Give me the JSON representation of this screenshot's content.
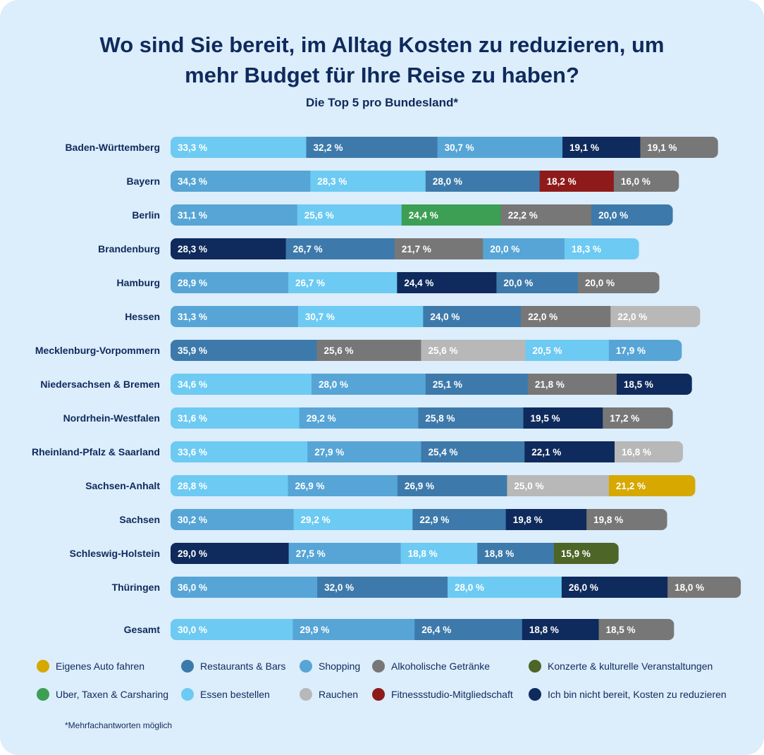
{
  "title_line1": "Wo sind Sie bereit, im Alltag Kosten zu reduzieren, um",
  "title_line2": "mehr Budget für Ihre Reise zu haben?",
  "subtitle": "Die Top 5 pro Bundesland*",
  "footnote": "*Mehrfachantworten möglich",
  "colors": {
    "auto": "#d6a800",
    "restaurants": "#3d7aab",
    "shopping": "#56a5d6",
    "alkohol": "#777777",
    "konzerte": "#4e6528",
    "uber": "#3d9f54",
    "essen": "#6dcaf2",
    "rauchen": "#b8b8b8",
    "fitness": "#8f1a1a",
    "nicht": "#0f2a5c"
  },
  "legend": [
    {
      "key": "auto",
      "label": "Eigenes Auto fahren"
    },
    {
      "key": "restaurants",
      "label": "Restaurants & Bars"
    },
    {
      "key": "shopping",
      "label": "Shopping"
    },
    {
      "key": "alkohol",
      "label": "Alkoholische Getränke"
    },
    {
      "key": "konzerte",
      "label": "Konzerte & kulturelle Veranstaltungen"
    },
    {
      "key": "uber",
      "label": "Uber, Taxen & Carsharing"
    },
    {
      "key": "essen",
      "label": "Essen bestellen"
    },
    {
      "key": "rauchen",
      "label": "Rauchen"
    },
    {
      "key": "fitness",
      "label": "Fitnessstudio-Mitgliedschaft"
    },
    {
      "key": "nicht",
      "label": "Ich bin nicht bereit, Kosten zu reduzieren"
    }
  ],
  "chart_data": {
    "type": "bar",
    "orientation": "horizontal-stacked",
    "title": "Wo sind Sie bereit, im Alltag Kosten zu reduzieren, um mehr Budget für Ihre Reise zu haben?",
    "subtitle": "Die Top 5 pro Bundesland*",
    "unit": "%",
    "rows": [
      {
        "label": "Baden-Württemberg",
        "segments": [
          {
            "cat": "essen",
            "value": 33.3,
            "text": "33,3 %"
          },
          {
            "cat": "restaurants",
            "value": 32.2,
            "text": "32,2 %"
          },
          {
            "cat": "shopping",
            "value": 30.7,
            "text": "30,7 %"
          },
          {
            "cat": "nicht",
            "value": 19.1,
            "text": "19,1 %"
          },
          {
            "cat": "alkohol",
            "value": 19.1,
            "text": "19,1 %"
          }
        ]
      },
      {
        "label": "Bayern",
        "segments": [
          {
            "cat": "shopping",
            "value": 34.3,
            "text": "34,3 %"
          },
          {
            "cat": "essen",
            "value": 28.3,
            "text": "28,3 %"
          },
          {
            "cat": "restaurants",
            "value": 28.0,
            "text": "28,0 %"
          },
          {
            "cat": "fitness",
            "value": 18.2,
            "text": "18,2 %"
          },
          {
            "cat": "alkohol",
            "value": 16.0,
            "text": "16,0 %"
          }
        ]
      },
      {
        "label": "Berlin",
        "segments": [
          {
            "cat": "shopping",
            "value": 31.1,
            "text": "31,1 %"
          },
          {
            "cat": "essen",
            "value": 25.6,
            "text": "25,6 %"
          },
          {
            "cat": "uber",
            "value": 24.4,
            "text": "24,4 %"
          },
          {
            "cat": "alkohol",
            "value": 22.2,
            "text": "22,2 %"
          },
          {
            "cat": "restaurants",
            "value": 20.0,
            "text": "20,0 %"
          }
        ]
      },
      {
        "label": "Brandenburg",
        "segments": [
          {
            "cat": "nicht",
            "value": 28.3,
            "text": "28,3 %"
          },
          {
            "cat": "restaurants",
            "value": 26.7,
            "text": "26,7 %"
          },
          {
            "cat": "alkohol",
            "value": 21.7,
            "text": "21,7 %"
          },
          {
            "cat": "shopping",
            "value": 20.0,
            "text": "20,0 %"
          },
          {
            "cat": "essen",
            "value": 18.3,
            "text": "18,3 %"
          }
        ]
      },
      {
        "label": "Hamburg",
        "segments": [
          {
            "cat": "shopping",
            "value": 28.9,
            "text": "28,9 %"
          },
          {
            "cat": "essen",
            "value": 26.7,
            "text": "26,7 %"
          },
          {
            "cat": "nicht",
            "value": 24.4,
            "text": "24,4 %"
          },
          {
            "cat": "restaurants",
            "value": 20.0,
            "text": "20,0 %"
          },
          {
            "cat": "alkohol",
            "value": 20.0,
            "text": "20,0 %"
          }
        ]
      },
      {
        "label": "Hessen",
        "segments": [
          {
            "cat": "shopping",
            "value": 31.3,
            "text": "31,3 %"
          },
          {
            "cat": "essen",
            "value": 30.7,
            "text": "30,7 %"
          },
          {
            "cat": "restaurants",
            "value": 24.0,
            "text": "24,0 %"
          },
          {
            "cat": "alkohol",
            "value": 22.0,
            "text": "22,0 %"
          },
          {
            "cat": "rauchen",
            "value": 22.0,
            "text": "22,0 %"
          }
        ]
      },
      {
        "label": "Mecklenburg-Vorpommern",
        "segments": [
          {
            "cat": "restaurants",
            "value": 35.9,
            "text": "35,9 %"
          },
          {
            "cat": "alkohol",
            "value": 25.6,
            "text": "25,6 %"
          },
          {
            "cat": "rauchen",
            "value": 25.6,
            "text": "25,6 %"
          },
          {
            "cat": "essen",
            "value": 20.5,
            "text": "20,5 %"
          },
          {
            "cat": "shopping",
            "value": 17.9,
            "text": "17,9 %"
          }
        ]
      },
      {
        "label": "Niedersachsen & Bremen",
        "segments": [
          {
            "cat": "essen",
            "value": 34.6,
            "text": "34,6 %"
          },
          {
            "cat": "shopping",
            "value": 28.0,
            "text": "28,0 %"
          },
          {
            "cat": "restaurants",
            "value": 25.1,
            "text": "25,1 %"
          },
          {
            "cat": "alkohol",
            "value": 21.8,
            "text": "21,8 %"
          },
          {
            "cat": "nicht",
            "value": 18.5,
            "text": "18,5 %"
          }
        ]
      },
      {
        "label": "Nordrhein-Westfalen",
        "segments": [
          {
            "cat": "essen",
            "value": 31.6,
            "text": "31,6 %"
          },
          {
            "cat": "shopping",
            "value": 29.2,
            "text": "29,2 %"
          },
          {
            "cat": "restaurants",
            "value": 25.8,
            "text": "25,8 %"
          },
          {
            "cat": "nicht",
            "value": 19.5,
            "text": "19,5 %"
          },
          {
            "cat": "alkohol",
            "value": 17.2,
            "text": "17,2 %"
          }
        ]
      },
      {
        "label": "Rheinland-Pfalz & Saarland",
        "segments": [
          {
            "cat": "essen",
            "value": 33.6,
            "text": "33,6 %"
          },
          {
            "cat": "shopping",
            "value": 27.9,
            "text": "27,9 %"
          },
          {
            "cat": "restaurants",
            "value": 25.4,
            "text": "25,4 %"
          },
          {
            "cat": "nicht",
            "value": 22.1,
            "text": "22,1 %"
          },
          {
            "cat": "rauchen",
            "value": 16.8,
            "text": "16,8 %"
          }
        ]
      },
      {
        "label": "Sachsen-Anhalt",
        "segments": [
          {
            "cat": "essen",
            "value": 28.8,
            "text": "28,8 %"
          },
          {
            "cat": "shopping",
            "value": 26.9,
            "text": "26,9 %"
          },
          {
            "cat": "restaurants",
            "value": 26.9,
            "text": "26,9 %"
          },
          {
            "cat": "rauchen",
            "value": 25.0,
            "text": "25,0 %"
          },
          {
            "cat": "auto",
            "value": 21.2,
            "text": "21,2 %"
          }
        ]
      },
      {
        "label": "Sachsen",
        "segments": [
          {
            "cat": "shopping",
            "value": 30.2,
            "text": "30,2 %"
          },
          {
            "cat": "essen",
            "value": 29.2,
            "text": "29,2 %"
          },
          {
            "cat": "restaurants",
            "value": 22.9,
            "text": "22,9 %"
          },
          {
            "cat": "nicht",
            "value": 19.8,
            "text": "19,8 %"
          },
          {
            "cat": "alkohol",
            "value": 19.8,
            "text": "19,8 %"
          }
        ]
      },
      {
        "label": "Schleswig-Holstein",
        "segments": [
          {
            "cat": "nicht",
            "value": 29.0,
            "text": "29,0 %"
          },
          {
            "cat": "shopping",
            "value": 27.5,
            "text": "27,5 %"
          },
          {
            "cat": "essen",
            "value": 18.8,
            "text": "18,8 %"
          },
          {
            "cat": "restaurants",
            "value": 18.8,
            "text": "18,8 %"
          },
          {
            "cat": "konzerte",
            "value": 15.9,
            "text": "15,9 %"
          }
        ]
      },
      {
        "label": "Thüringen",
        "segments": [
          {
            "cat": "shopping",
            "value": 36.0,
            "text": "36,0 %"
          },
          {
            "cat": "restaurants",
            "value": 32.0,
            "text": "32,0 %"
          },
          {
            "cat": "essen",
            "value": 28.0,
            "text": "28,0 %"
          },
          {
            "cat": "nicht",
            "value": 26.0,
            "text": "26,0 %"
          },
          {
            "cat": "alkohol",
            "value": 18.0,
            "text": "18,0 %"
          }
        ]
      },
      {
        "label": "Gesamt",
        "segments": [
          {
            "cat": "essen",
            "value": 30.0,
            "text": "30,0 %"
          },
          {
            "cat": "shopping",
            "value": 29.9,
            "text": "29,9 %"
          },
          {
            "cat": "restaurants",
            "value": 26.4,
            "text": "26,4 %"
          },
          {
            "cat": "nicht",
            "value": 18.8,
            "text": "18,8 %"
          },
          {
            "cat": "alkohol",
            "value": 18.5,
            "text": "18,5 %"
          }
        ]
      }
    ]
  }
}
